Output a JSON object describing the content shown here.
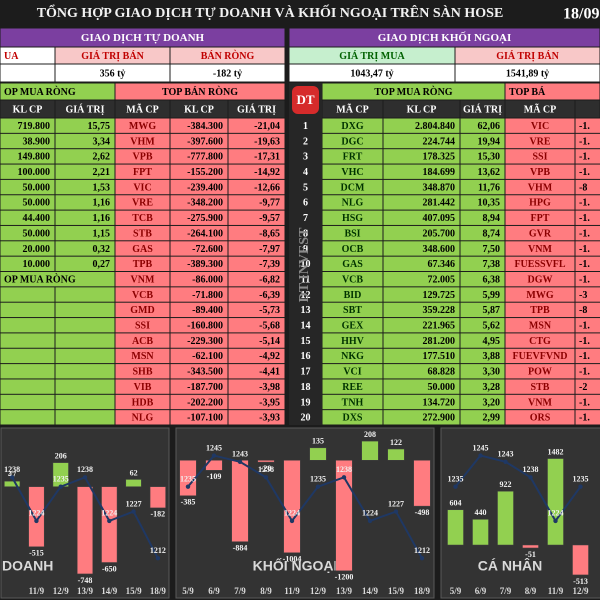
{
  "header": {
    "title": "TỔNG HỢP GIAO DỊCH TỰ DOANH VÀ KHỐI NGOẠI TRÊN SÀN HOSE",
    "date": "18/09"
  },
  "left": {
    "title": "GIAO DỊCH TỰ DOANH",
    "summary_labels": [
      "UA",
      "GIÁ TRỊ BÁN",
      "BÁN RÒNG"
    ],
    "summary_values": [
      "356 tỷ",
      "-182 tỷ"
    ],
    "buy_title": "OP MUA RÒNG",
    "sell_title": "TOP BÁN RÒNG",
    "columns": [
      "KL CP",
      "GIÁ TRỊ",
      "MÃ CP",
      "KL CP",
      "GIÁ TRỊ"
    ],
    "buy_rows": [
      [
        "719.800",
        "15,75"
      ],
      [
        "38.900",
        "3,34"
      ],
      [
        "149.800",
        "2,62"
      ],
      [
        "100.000",
        "2,21"
      ],
      [
        "50.000",
        "1,53"
      ],
      [
        "50.000",
        "1,16"
      ],
      [
        "44.400",
        "1,16"
      ],
      [
        "50.000",
        "1,15"
      ],
      [
        "20.000",
        "0,32"
      ],
      [
        "10.000",
        "0,27"
      ]
    ],
    "buy_title_2": "OP MUA RÒNG",
    "sell_rows": [
      [
        "MWG",
        "-384.300",
        "-21,04"
      ],
      [
        "VHM",
        "-397.600",
        "-19,63"
      ],
      [
        "VPB",
        "-777.800",
        "-17,31"
      ],
      [
        "FPT",
        "-155.200",
        "-14,92"
      ],
      [
        "VIC",
        "-239.400",
        "-12,66"
      ],
      [
        "VRE",
        "-348.200",
        "-9,77"
      ],
      [
        "TCB",
        "-275.900",
        "-9,57"
      ],
      [
        "STB",
        "-264.100",
        "-8,65"
      ],
      [
        "GAS",
        "-72.600",
        "-7,97"
      ],
      [
        "TPB",
        "-389.300",
        "-7,39"
      ],
      [
        "VNM",
        "-86.000",
        "-6,82"
      ],
      [
        "VCB",
        "-71.800",
        "-6,39"
      ],
      [
        "GMD",
        "-89.400",
        "-5,73"
      ],
      [
        "SSI",
        "-160.800",
        "-5,68"
      ],
      [
        "ACB",
        "-229.300",
        "-5,14"
      ],
      [
        "MSN",
        "-62.100",
        "-4,92"
      ],
      [
        "SHB",
        "-343.500",
        "-4,41"
      ],
      [
        "VIB",
        "-187.700",
        "-3,98"
      ],
      [
        "HDB",
        "-202.200",
        "-3,95"
      ],
      [
        "NLG",
        "-107.100",
        "-3,93"
      ]
    ]
  },
  "right": {
    "title": "GIAO DỊCH KHỐI NGOẠI",
    "summary_labels": [
      "GIÁ TRỊ MUA",
      "GIÁ TRỊ BÁN"
    ],
    "summary_values": [
      "1043,47 tỷ",
      "1541,89 tỷ"
    ],
    "logo": "DT",
    "watermark": "DT INVEST",
    "buy_title": "TOP MUA RÒNG",
    "sell_title": "TOP BÁ",
    "columns": [
      "MÃ CP",
      "KL CP",
      "GIÁ TRỊ",
      "MÃ CP"
    ],
    "ranks": [
      1,
      2,
      3,
      4,
      5,
      6,
      7,
      8,
      9,
      10,
      11,
      12,
      13,
      14,
      15,
      16,
      17,
      18,
      19,
      20
    ],
    "buy_rows": [
      [
        "DXG",
        "2.804.840",
        "62,06"
      ],
      [
        "DGC",
        "224.744",
        "19,94"
      ],
      [
        "FRT",
        "178.325",
        "15,30"
      ],
      [
        "VHC",
        "184.699",
        "13,62"
      ],
      [
        "DCM",
        "348.870",
        "11,76"
      ],
      [
        "NLG",
        "281.442",
        "10,35"
      ],
      [
        "HSG",
        "407.095",
        "8,94"
      ],
      [
        "BSI",
        "205.700",
        "8,74"
      ],
      [
        "OCB",
        "348.600",
        "7,50"
      ],
      [
        "GAS",
        "67.346",
        "7,38"
      ],
      [
        "VCB",
        "72.005",
        "6,38"
      ],
      [
        "BID",
        "129.725",
        "5,99"
      ],
      [
        "SBT",
        "359.228",
        "5,87"
      ],
      [
        "GEX",
        "221.965",
        "5,62"
      ],
      [
        "HHV",
        "281.200",
        "4,95"
      ],
      [
        "NKG",
        "177.510",
        "3,88"
      ],
      [
        "VCI",
        "68.828",
        "3,30"
      ],
      [
        "REE",
        "50.000",
        "3,28"
      ],
      [
        "TNH",
        "134.720",
        "3,20"
      ],
      [
        "DXS",
        "272.900",
        "2,99"
      ]
    ],
    "sell_rows": [
      [
        "VIC",
        "-1."
      ],
      [
        "VRE",
        "-1."
      ],
      [
        "SSI",
        "-1."
      ],
      [
        "VPB",
        "-1."
      ],
      [
        "VHM",
        "-8"
      ],
      [
        "HPG",
        "-1."
      ],
      [
        "FPT",
        "-1."
      ],
      [
        "GVR",
        "-1."
      ],
      [
        "VNM",
        "-1."
      ],
      [
        "FUESSVFL",
        "-1."
      ],
      [
        "DGW",
        "-1."
      ],
      [
        "MWG",
        "-3"
      ],
      [
        "TPB",
        "-8"
      ],
      [
        "MSN",
        "-1."
      ],
      [
        "CTG",
        "-1."
      ],
      [
        "FUEVFVND",
        "-1."
      ],
      [
        "POW",
        "-1."
      ],
      [
        "STB",
        "-2"
      ],
      [
        "VNM",
        "-1."
      ],
      [
        "ORS",
        "-1."
      ]
    ]
  },
  "chart_data": [
    {
      "type": "bar",
      "title": "DOANH",
      "categories": [
        null,
        "11/9",
        "12/9",
        "13/9",
        "14/9",
        "15/9",
        "18/9"
      ],
      "ylim": [
        -800,
        400
      ],
      "y2lim": [
        1205,
        1250
      ],
      "series": [
        {
          "values": [
            47,
            -515,
            206,
            -748,
            -650,
            62,
            -182
          ],
          "positive_color": "#92d050",
          "negative_color": "#ff7c80"
        },
        {
          "type": "line",
          "axis": "y2",
          "color": "#1f3864",
          "values": [
            1238,
            1224,
            1235,
            1238,
            1224,
            1227,
            1212
          ]
        }
      ]
    },
    {
      "type": "bar",
      "title": "KHỐI NGOẠI",
      "categories": [
        "5/9",
        "6/9",
        "7/9",
        "8/9",
        "11/9",
        "12/9",
        "13/9",
        "14/9",
        "15/9",
        "18/9"
      ],
      "ylim": [
        -1300,
        220
      ],
      "y2lim": [
        1205,
        1250
      ],
      "series": [
        {
          "values": [
            -385,
            -109,
            -884,
            -20,
            -1004,
            135,
            -1200,
            208,
            122,
            -498
          ],
          "positive_color": "#92d050",
          "negative_color": "#ff7c80"
        },
        {
          "type": "line",
          "axis": "y2",
          "color": "#1f3864",
          "values": [
            1235,
            1245,
            1243,
            1238,
            1224,
            1235,
            1238,
            1224,
            1227,
            1212
          ]
        }
      ]
    },
    {
      "type": "bar",
      "title": "CÁ NHÂN",
      "categories": [
        "5/9",
        "6/9",
        "7/9",
        "8/9",
        "11/9",
        "12/9"
      ],
      "ylim": [
        -600,
        1800
      ],
      "y2lim": [
        1205,
        1250
      ],
      "series": [
        {
          "values": [
            604,
            440,
            922,
            -51,
            1482,
            -513
          ],
          "positive_color": "#92d050",
          "negative_color": "#ff7c80"
        },
        {
          "type": "line",
          "axis": "y2",
          "color": "#1f3864",
          "values": [
            1235,
            1245,
            1243,
            1238,
            1224,
            1235
          ]
        }
      ]
    }
  ]
}
